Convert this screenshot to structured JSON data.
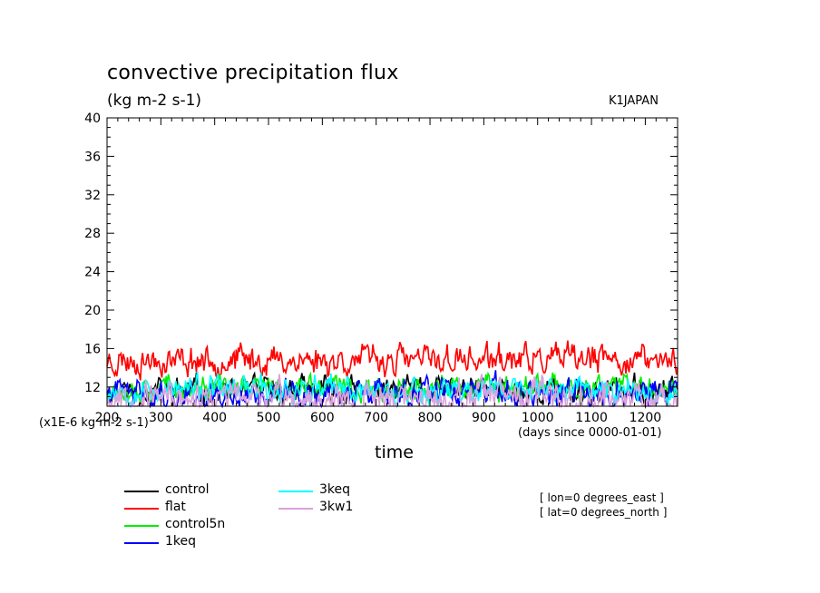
{
  "header": {
    "title": "convective precipitation flux",
    "units": "(kg m-2 s-1)",
    "tag": "K1JAPAN"
  },
  "annotations": {
    "scale_factor": "(x1E-6 kg m-2 s-1)",
    "x_units": "(days since 0000-01-01)",
    "x_label": "time",
    "location_lon": "[ lon=0 degrees_east ]",
    "location_lat": "[ lat=0 degrees_north ]"
  },
  "chart_data": {
    "type": "line",
    "title": "convective precipitation flux",
    "subtitle": "(kg m-2 s-1)",
    "xlabel": "time",
    "ylabel": "",
    "xlim": [
      200,
      1260
    ],
    "ylim": [
      10,
      40
    ],
    "x_ticks": [
      200,
      300,
      400,
      500,
      600,
      700,
      800,
      900,
      1000,
      1100,
      1200
    ],
    "x_tick_labels": [
      "200",
      "300",
      "400",
      "500",
      "600",
      "700",
      "800",
      "900",
      "1000",
      "1100",
      "1200"
    ],
    "y_ticks": [
      12,
      16,
      20,
      24,
      28,
      32,
      36,
      40
    ],
    "y_tick_labels": [
      "12",
      "16",
      "20",
      "24",
      "28",
      "32",
      "36",
      "40"
    ],
    "grid": false,
    "legend_position": "bottom-left",
    "series": [
      {
        "name": "control",
        "color": "#000000",
        "mean": 11.6,
        "amplitude": 1.0,
        "seed": 11
      },
      {
        "name": "flat",
        "color": "#ff0000",
        "mean": 14.8,
        "amplitude": 1.1,
        "seed": 23
      },
      {
        "name": "control5n",
        "color": "#00ee00",
        "mean": 11.9,
        "amplitude": 0.9,
        "seed": 37
      },
      {
        "name": "1keq",
        "color": "#0000ff",
        "mean": 11.3,
        "amplitude": 1.1,
        "seed": 41
      },
      {
        "name": "3keq",
        "color": "#00ffff",
        "mean": 11.7,
        "amplitude": 1.0,
        "seed": 53
      },
      {
        "name": "3kw1",
        "color": "#dda0dd",
        "mean": 10.9,
        "amplitude": 1.2,
        "seed": 67
      }
    ]
  }
}
